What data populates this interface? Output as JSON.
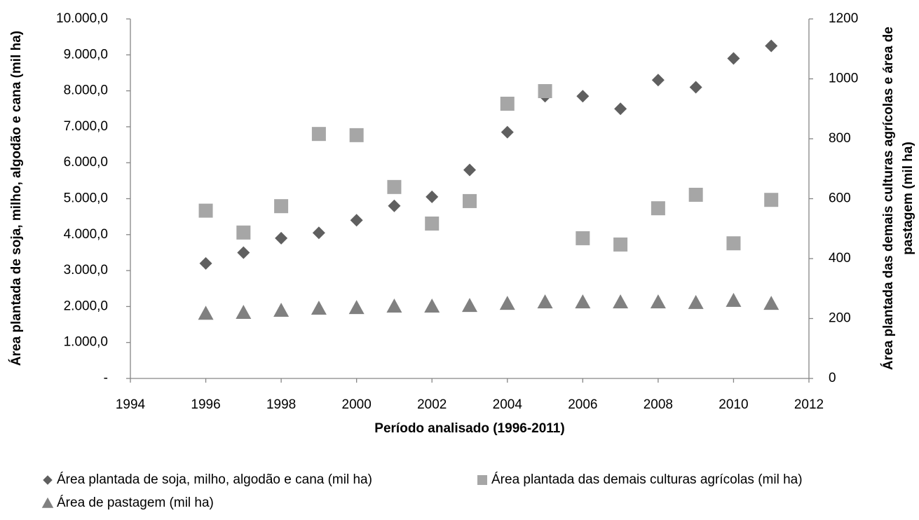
{
  "chart_data": {
    "type": "scatter",
    "xlabel": "Período analisado (1996-2011)",
    "ylabel": "Área plantada de soja, milho, algodão e cana (mil ha)",
    "y2label": [
      "Área plantada das demais culturas agrícolas e área de",
      "pastagem (mil ha)"
    ],
    "x": [
      1996,
      1997,
      1998,
      1999,
      2000,
      2001,
      2002,
      2003,
      2004,
      2005,
      2006,
      2007,
      2008,
      2009,
      2010,
      2011
    ],
    "xlim": [
      1994,
      2012
    ],
    "xticks": [
      1994,
      1996,
      1998,
      2000,
      2002,
      2004,
      2006,
      2008,
      2010,
      2012
    ],
    "ylim": [
      0,
      10000
    ],
    "yticks": [
      {
        "value": 0,
        "label": "-"
      },
      {
        "value": 1000,
        "label": "1.000,0"
      },
      {
        "value": 2000,
        "label": "2.000,0"
      },
      {
        "value": 3000,
        "label": "3.000,0"
      },
      {
        "value": 4000,
        "label": "4.000,0"
      },
      {
        "value": 5000,
        "label": "5.000,0"
      },
      {
        "value": 6000,
        "label": "6.000,0"
      },
      {
        "value": 7000,
        "label": "7.000,0"
      },
      {
        "value": 8000,
        "label": "8.000,0"
      },
      {
        "value": 9000,
        "label": "9.000,0"
      },
      {
        "value": 10000,
        "label": "10.000,0"
      }
    ],
    "y2lim": [
      0,
      1200
    ],
    "y2ticks": [
      0,
      200,
      400,
      600,
      800,
      1000,
      1200
    ],
    "series": [
      {
        "name": "Área plantada de soja, milho, algodão e cana (mil ha)",
        "marker": "diamond",
        "color": "#5f5f5f",
        "values": [
          3200,
          3500,
          3900,
          4050,
          4400,
          4800,
          5050,
          5800,
          6850,
          7850,
          7850,
          7500,
          8300,
          8100,
          8900,
          9250
        ]
      },
      {
        "name": "Área plantada das demais culturas agrícolas (mil ha)",
        "marker": "square",
        "color": "#a6a6a6",
        "axis": "y2",
        "values": [
          560,
          487,
          575,
          816,
          812,
          639,
          517,
          592,
          917,
          959,
          468,
          447,
          568,
          613,
          451,
          596
        ]
      },
      {
        "name": "Área de pastagem (mil ha)",
        "marker": "triangle",
        "color": "#808080",
        "axis": "y2",
        "values": [
          217,
          220,
          227,
          234,
          236,
          241,
          241,
          243,
          250,
          255,
          255,
          255,
          255,
          253,
          260,
          250
        ]
      }
    ]
  }
}
